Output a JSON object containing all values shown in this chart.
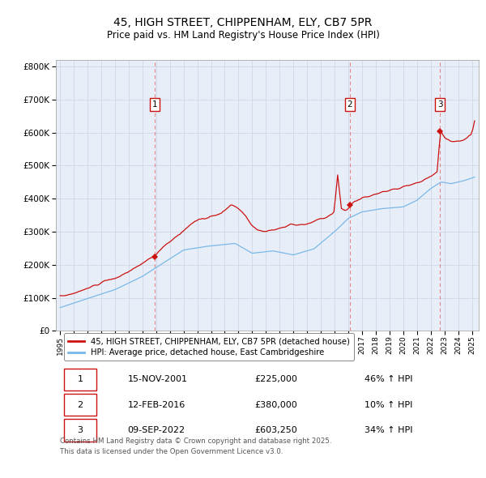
{
  "title": "45, HIGH STREET, CHIPPENHAM, ELY, CB7 5PR",
  "subtitle": "Price paid vs. HM Land Registry's House Price Index (HPI)",
  "title_fontsize": 10,
  "subtitle_fontsize": 8.5,
  "ylim": [
    0,
    820000
  ],
  "yticks": [
    0,
    100000,
    200000,
    300000,
    400000,
    500000,
    600000,
    700000,
    800000
  ],
  "ytick_labels": [
    "£0",
    "£100K",
    "£200K",
    "£300K",
    "£400K",
    "£500K",
    "£600K",
    "£700K",
    "£800K"
  ],
  "xlim_start": 1994.7,
  "xlim_end": 2025.5,
  "xtick_years": [
    1995,
    1996,
    1997,
    1998,
    1999,
    2000,
    2001,
    2002,
    2003,
    2004,
    2005,
    2006,
    2007,
    2008,
    2009,
    2010,
    2011,
    2012,
    2013,
    2014,
    2015,
    2016,
    2017,
    2018,
    2019,
    2020,
    2021,
    2022,
    2023,
    2024,
    2025
  ],
  "hpi_color": "#7ab8e8",
  "price_color": "#cc1111",
  "vline_color": "#dd4444",
  "grid_color": "#d0d8e8",
  "plot_bg_color": "#e8eef8",
  "sale_points": [
    {
      "date_num": 2001.88,
      "price": 225000,
      "label": "1"
    },
    {
      "date_num": 2016.12,
      "price": 380000,
      "label": "2"
    },
    {
      "date_num": 2022.69,
      "price": 603250,
      "label": "3"
    }
  ],
  "legend_entries": [
    {
      "label": "45, HIGH STREET, CHIPPENHAM, ELY, CB7 5PR (detached house)",
      "color": "#cc1111"
    },
    {
      "label": "HPI: Average price, detached house, East Cambridgeshire",
      "color": "#7ab8e8"
    }
  ],
  "table_rows": [
    {
      "num": "1",
      "date": "15-NOV-2001",
      "price": "£225,000",
      "hpi": "46% ↑ HPI"
    },
    {
      "num": "2",
      "date": "12-FEB-2016",
      "price": "£380,000",
      "hpi": "10% ↑ HPI"
    },
    {
      "num": "3",
      "date": "09-SEP-2022",
      "price": "£603,250",
      "hpi": "34% ↑ HPI"
    }
  ],
  "footnote": "Contains HM Land Registry data © Crown copyright and database right 2025.\nThis data is licensed under the Open Government Licence v3.0."
}
